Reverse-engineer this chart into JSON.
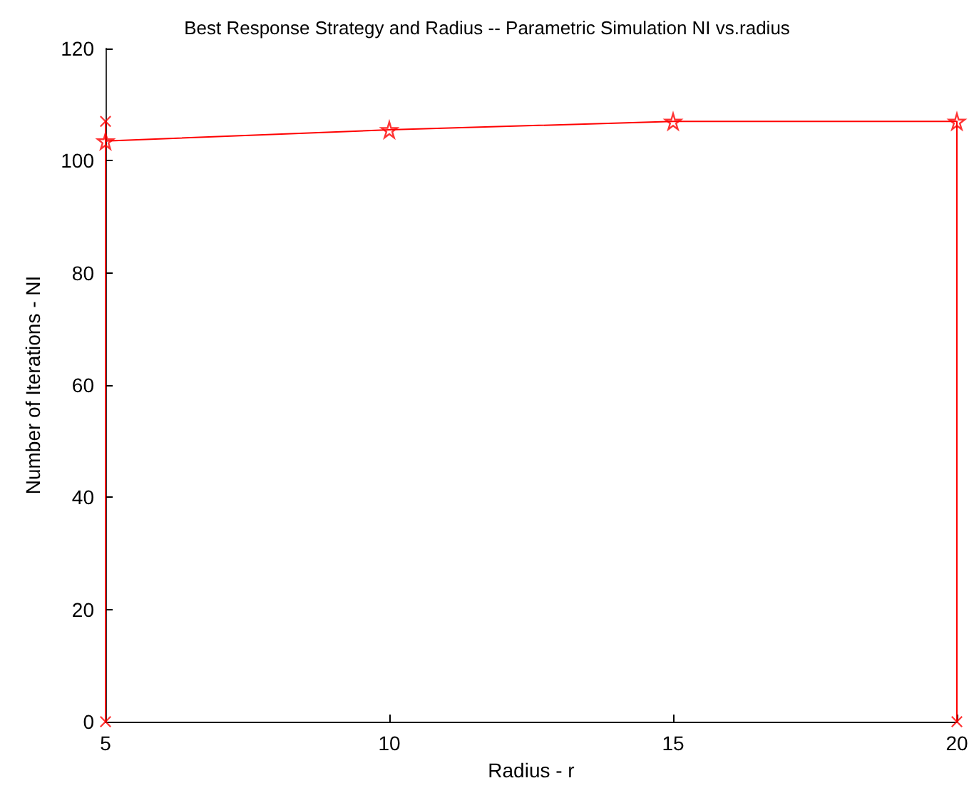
{
  "chart_data": {
    "type": "line",
    "title": "Best Response Strategy and Radius -- Parametric Simulation NI vs.radius",
    "xlabel": "Radius - r",
    "ylabel": "Number of Iterations - NI",
    "series": [
      {
        "color": "#ff0000",
        "marker": "none",
        "x": [
          5,
          5,
          5,
          10,
          15,
          20,
          20
        ],
        "values": [
          0,
          107,
          103.5,
          105.5,
          107,
          107,
          0
        ]
      },
      {
        "type": "scatter",
        "color": "#ff0000",
        "marker": "star",
        "x": [
          5,
          10,
          15,
          20
        ],
        "values": [
          103.5,
          105.5,
          107,
          107
        ]
      },
      {
        "type": "scatter",
        "color": "#ff0000",
        "marker": "cross",
        "x": [
          5,
          5,
          20
        ],
        "values": [
          107,
          0,
          0
        ]
      }
    ],
    "xlim": [
      5,
      20
    ],
    "xticks": [
      5,
      10,
      15,
      20
    ],
    "ylim": [
      0,
      120
    ],
    "yticks": [
      0,
      20,
      40,
      60,
      80,
      100,
      120
    ],
    "grid": false
  }
}
